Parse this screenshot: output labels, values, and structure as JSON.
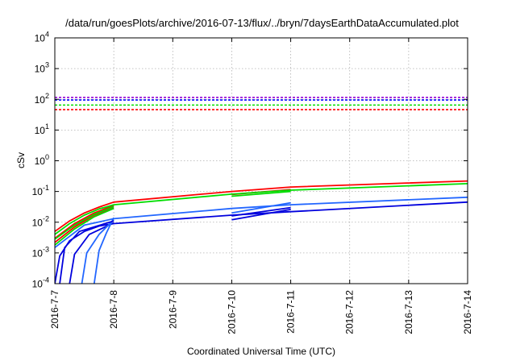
{
  "chart_data": {
    "type": "line",
    "title": "/data/run/goesPlots/archive/2016-07-13/flux/../bryn/7daysEarthDataAccumulated.plot",
    "xlabel": "Coordinated Universal Time (UTC)",
    "ylabel": "cSv",
    "y_scale": "log",
    "grid": true,
    "x_axis_type": "date",
    "xlim": [
      "2016-7-7",
      "2016-7-14"
    ],
    "ylim": [
      0.0001,
      10000
    ],
    "x_ticks": [
      "2016-7-7",
      "2016-7-8",
      "2016-7-9",
      "2016-7-10",
      "2016-7-11",
      "2016-7-12",
      "2016-7-13",
      "2016-7-14"
    ],
    "y_ticks": [
      {
        "value": 0.0001,
        "base": "10",
        "exp": "-4"
      },
      {
        "value": 0.001,
        "base": "10",
        "exp": "-3"
      },
      {
        "value": 0.01,
        "base": "10",
        "exp": "-2"
      },
      {
        "value": 0.1,
        "base": "10",
        "exp": "-1"
      },
      {
        "value": 1,
        "base": "10",
        "exp": "0"
      },
      {
        "value": 10,
        "base": "10",
        "exp": "1"
      },
      {
        "value": 100,
        "base": "10",
        "exp": "2"
      },
      {
        "value": 1000,
        "base": "10",
        "exp": "3"
      },
      {
        "value": 10000,
        "base": "10",
        "exp": "4"
      }
    ],
    "reference_lines": [
      {
        "y": 115,
        "color": "#9400d3"
      },
      {
        "y": 95,
        "color": "#0000ff"
      },
      {
        "y": 65,
        "color": "#00dd00"
      },
      {
        "y": 46,
        "color": "#ff0000"
      }
    ],
    "series": [
      {
        "color": "#ff0000",
        "points": [
          [
            "2016-7-7 00:00",
            0.005
          ],
          [
            "2016-7-7 06:00",
            0.011
          ],
          [
            "2016-7-7 12:00",
            0.02
          ],
          [
            "2016-7-7 18:00",
            0.031
          ],
          [
            "2016-7-8 00:00",
            0.045
          ],
          [
            "2016-7-10 00:00",
            0.1
          ],
          [
            "2016-7-11 00:00",
            0.14
          ],
          [
            "2016-7-14 00:00",
            0.22
          ]
        ]
      },
      {
        "color": "#ff0000",
        "points": [
          [
            "2016-7-7 00:00",
            0.003
          ],
          [
            "2016-7-7 08:00",
            0.009
          ],
          [
            "2016-7-7 16:00",
            0.02
          ],
          [
            "2016-7-8 00:00",
            0.035
          ]
        ]
      },
      {
        "color": "#ff0000",
        "points": [
          [
            "2016-7-7 00:00",
            0.0022
          ],
          [
            "2016-7-7 08:00",
            0.007
          ],
          [
            "2016-7-7 16:00",
            0.017
          ],
          [
            "2016-7-8 00:00",
            0.03
          ]
        ]
      },
      {
        "color": "#ff0000",
        "points": [
          [
            "2016-7-10 00:00",
            0.08
          ],
          [
            "2016-7-11 00:00",
            0.115
          ]
        ]
      },
      {
        "color": "#00dd00",
        "points": [
          [
            "2016-7-7 00:00",
            0.004
          ],
          [
            "2016-7-7 06:00",
            0.009
          ],
          [
            "2016-7-7 12:00",
            0.017
          ],
          [
            "2016-7-7 18:00",
            0.027
          ],
          [
            "2016-7-8 00:00",
            0.037
          ],
          [
            "2016-7-10 00:00",
            0.082
          ],
          [
            "2016-7-11 00:00",
            0.11
          ],
          [
            "2016-7-14 00:00",
            0.18
          ]
        ]
      },
      {
        "color": "#00dd00",
        "points": [
          [
            "2016-7-7 00:00",
            0.0018
          ],
          [
            "2016-7-7 08:00",
            0.006
          ],
          [
            "2016-7-7 16:00",
            0.015
          ],
          [
            "2016-7-8 00:00",
            0.028
          ]
        ]
      },
      {
        "color": "#00dd00",
        "points": [
          [
            "2016-7-7 00:00",
            0.0028
          ],
          [
            "2016-7-7 08:00",
            0.008
          ],
          [
            "2016-7-7 16:00",
            0.018
          ],
          [
            "2016-7-8 00:00",
            0.032
          ]
        ]
      },
      {
        "color": "#00dd00",
        "points": [
          [
            "2016-7-10 00:00",
            0.07
          ],
          [
            "2016-7-11 00:00",
            0.1
          ]
        ]
      },
      {
        "color": "#0000dd",
        "points": [
          [
            "2016-7-7 00:00",
            0.0001
          ],
          [
            "2016-7-7 02:00",
            0.0008
          ],
          [
            "2016-7-7 06:00",
            0.0025
          ],
          [
            "2016-7-7 12:00",
            0.005
          ],
          [
            "2016-7-7 18:00",
            0.0075
          ],
          [
            "2016-7-8 00:00",
            0.009
          ],
          [
            "2016-7-10 00:00",
            0.017
          ],
          [
            "2016-7-11 00:00",
            0.022
          ],
          [
            "2016-7-14 00:00",
            0.045
          ]
        ]
      },
      {
        "color": "#0000dd",
        "points": [
          [
            "2016-7-7 06:00",
            0.0001
          ],
          [
            "2016-7-7 08:00",
            0.0009
          ],
          [
            "2016-7-7 14:00",
            0.004
          ],
          [
            "2016-7-8 00:00",
            0.0095
          ]
        ]
      },
      {
        "color": "#2266ff",
        "points": [
          [
            "2016-7-7 11:00",
            0.0001
          ],
          [
            "2016-7-7 13:00",
            0.001
          ],
          [
            "2016-7-7 18:00",
            0.004
          ],
          [
            "2016-7-8 00:00",
            0.012
          ]
        ]
      },
      {
        "color": "#2266ff",
        "points": [
          [
            "2016-7-7 16:00",
            0.0001
          ],
          [
            "2016-7-7 18:00",
            0.0012
          ],
          [
            "2016-7-7 21:00",
            0.0045
          ],
          [
            "2016-7-8 00:00",
            0.014
          ]
        ]
      },
      {
        "color": "#0000dd",
        "points": [
          [
            "2016-7-7 02:00",
            0.0001
          ],
          [
            "2016-7-7 04:00",
            0.0015
          ],
          [
            "2016-7-7 10:00",
            0.005
          ],
          [
            "2016-7-8 00:00",
            0.011
          ]
        ]
      },
      {
        "color": "#2266ff",
        "points": [
          [
            "2016-7-7 00:00",
            0.0015
          ],
          [
            "2016-7-7 12:00",
            0.008
          ],
          [
            "2016-7-8 00:00",
            0.013
          ],
          [
            "2016-7-10 00:00",
            0.028
          ],
          [
            "2016-7-11 00:00",
            0.037
          ],
          [
            "2016-7-14 00:00",
            0.065
          ]
        ]
      },
      {
        "color": "#0000dd",
        "points": [
          [
            "2016-7-10 00:00",
            0.012
          ],
          [
            "2016-7-11 00:00",
            0.026
          ]
        ]
      },
      {
        "color": "#0000dd",
        "points": [
          [
            "2016-7-10 00:00",
            0.016
          ],
          [
            "2016-7-11 00:00",
            0.03
          ]
        ]
      },
      {
        "color": "#2266ff",
        "points": [
          [
            "2016-7-10 00:00",
            0.02
          ],
          [
            "2016-7-11 00:00",
            0.043
          ]
        ]
      }
    ]
  }
}
